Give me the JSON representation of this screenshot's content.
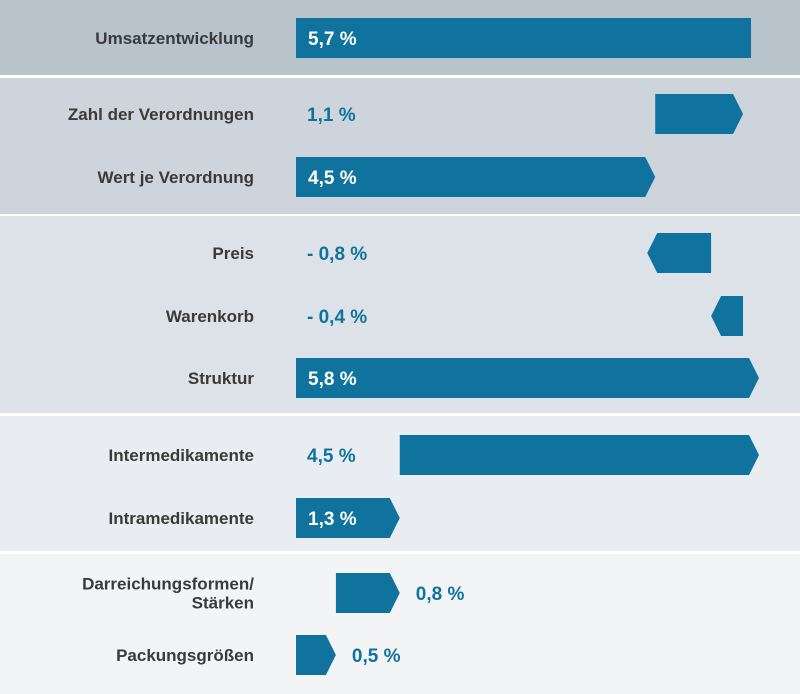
{
  "chart_data": {
    "type": "bar",
    "orientation": "horizontal-waterfall",
    "colors": {
      "bar": "#10739e",
      "value_label_inside": "#ffffff",
      "value_label_outside": "#10739e",
      "category_label": "#3a3a3a",
      "band_1": "#b8c3cc",
      "band_2": "#cdd4dc",
      "band_3": "#dde2e8",
      "band_4": "#e9ecf0",
      "band_5": "#f2f4f6"
    },
    "groups": [
      {
        "band": "band_1",
        "items": [
          {
            "label": "Umsatzentwicklung",
            "value_label": "5,7 %",
            "start": 0,
            "end": 5.7,
            "arrow": false,
            "label_position": "inside"
          }
        ]
      },
      {
        "band": "band_2",
        "items": [
          {
            "label": "Zahl der Verordnungen",
            "value_label": "1,1 %",
            "start": 4.5,
            "end": 5.6,
            "arrow": true,
            "label_position": "left-col"
          },
          {
            "label": "Wert je Verordnung",
            "value_label": "4,5 %",
            "start": 0,
            "end": 4.5,
            "arrow": true,
            "label_position": "inside"
          }
        ]
      },
      {
        "band": "band_3",
        "items": [
          {
            "label": "Preis",
            "value_label": "- 0,8 %",
            "start": 5.2,
            "end": 4.4,
            "arrow": true,
            "label_position": "left-col"
          },
          {
            "label": "Warenkorb",
            "value_label": "- 0,4 %",
            "start": 5.6,
            "end": 5.2,
            "arrow": true,
            "label_position": "left-col"
          },
          {
            "label": "Struktur",
            "value_label": "5,8 %",
            "start": 0,
            "end": 5.8,
            "arrow": true,
            "label_position": "inside"
          }
        ]
      },
      {
        "band": "band_4",
        "items": [
          {
            "label": "Intermedikamente",
            "value_label": "4,5 %",
            "start": 1.3,
            "end": 5.8,
            "arrow": true,
            "label_position": "left-col"
          },
          {
            "label": "Intramedikamente",
            "value_label": "1,3 %",
            "start": 0,
            "end": 1.3,
            "arrow": true,
            "label_position": "inside"
          }
        ]
      },
      {
        "band": "band_5",
        "items": [
          {
            "label": "Darreichungsformen/ Stärken",
            "label_lines": [
              "Darreichungsformen/",
              "Stärken"
            ],
            "value_label": "0,8 %",
            "start": 0.5,
            "end": 1.3,
            "arrow": true,
            "label_position": "right"
          },
          {
            "label": "Packungsgrößen",
            "value_label": "0,5 %",
            "start": 0,
            "end": 0.5,
            "arrow": true,
            "label_position": "right"
          }
        ]
      }
    ],
    "xlim": [
      0,
      5.8
    ]
  }
}
